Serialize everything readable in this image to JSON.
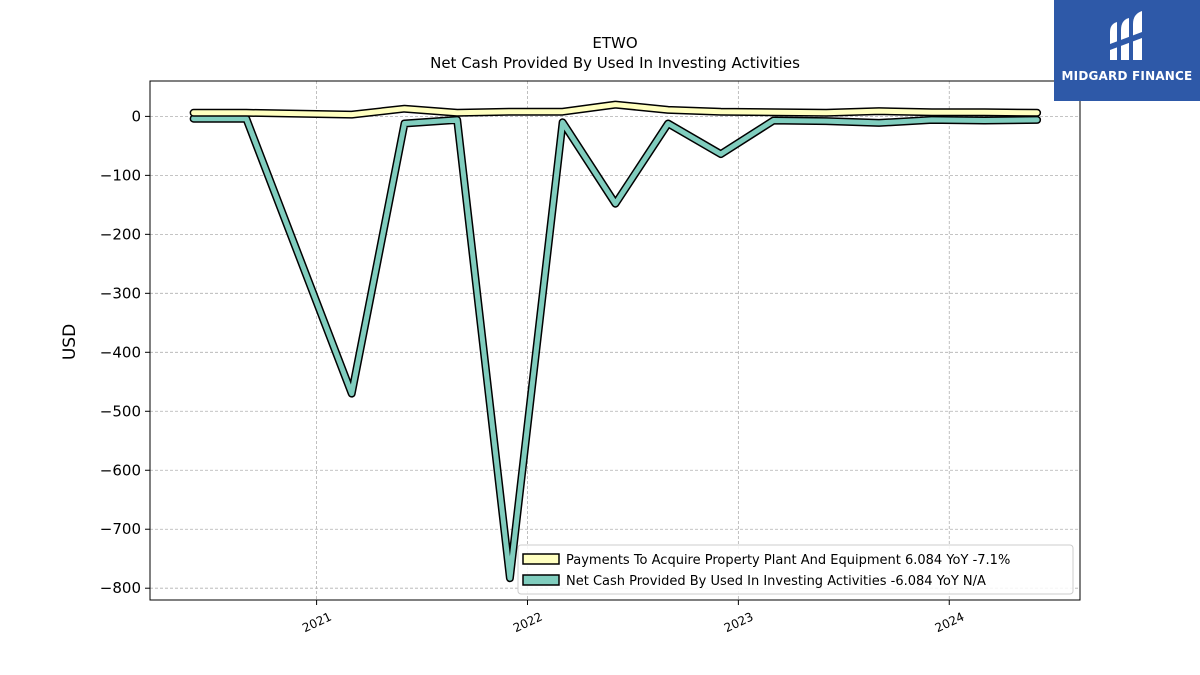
{
  "chart_data": {
    "type": "line",
    "title": "ETWO",
    "subtitle": "Net Cash Provided By Used In Investing Activities",
    "ylabel": "USD",
    "xlabel": "",
    "ylim": [
      -820,
      60
    ],
    "xlim": [
      2020.21,
      2024.62
    ],
    "grid": true,
    "legend_position": "lower-right",
    "y_ticks": [
      0,
      -100,
      -200,
      -300,
      -400,
      -500,
      -600,
      -700,
      -800
    ],
    "y_tick_labels": [
      "0",
      "−100",
      "−200",
      "−300",
      "−400",
      "−500",
      "−600",
      "−700",
      "−800"
    ],
    "x_ticks": [
      2021,
      2022,
      2023,
      2024
    ],
    "x_tick_labels": [
      "2021",
      "2022",
      "2023",
      "2024"
    ],
    "x": [
      "2020-06-01",
      "2020-09-01",
      "2021-03-01",
      "2021-06-01",
      "2021-09-01",
      "2021-12-01",
      "2022-03-01",
      "2022-06-01",
      "2022-09-01",
      "2022-12-01",
      "2023-03-01",
      "2023-06-01",
      "2023-09-01",
      "2023-12-01",
      "2024-03-01",
      "2024-06-01"
    ],
    "series": [
      {
        "name": "Payments To Acquire Property Plant And Equipment",
        "legend_label": "Payments To Acquire Property Plant And Equipment  6.084 YoY -7.1%",
        "color": "#ffffc0",
        "values": [
          6,
          6,
          3,
          13,
          6,
          8,
          8,
          20,
          11,
          8,
          7,
          6,
          9,
          7,
          7,
          6
        ]
      },
      {
        "name": "Net Cash Provided By Used In Investing Activities",
        "legend_label": "Net Cash Provided By Used In Investing Activities  -6.084 YoY N/A",
        "color": "#80cdbe",
        "values": [
          -4,
          -4,
          -470,
          -12,
          -6,
          -783,
          -10,
          -148,
          -12,
          -64,
          -7,
          -8,
          -11,
          -6,
          -7,
          -6
        ]
      }
    ]
  },
  "logo": {
    "text": "MIDGARD FINANCE",
    "color": "#2e59a8"
  }
}
